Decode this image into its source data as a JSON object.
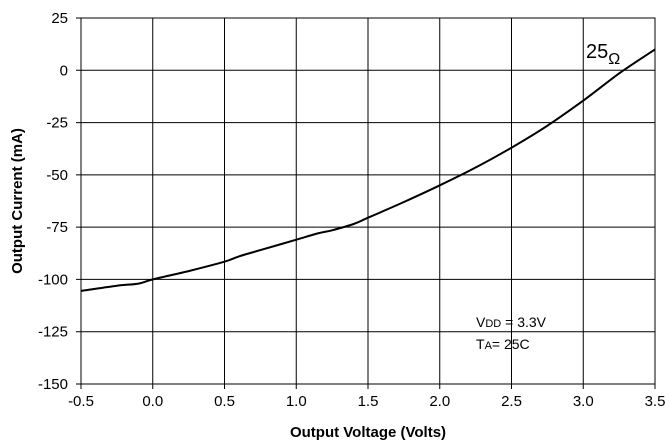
{
  "chart_data": {
    "type": "line",
    "title": "",
    "xlabel": "Output Voltage (Volts)",
    "ylabel": "Output Current (mA)",
    "xlim": [
      -0.5,
      3.5
    ],
    "ylim": [
      -150,
      25
    ],
    "xticks": [
      -0.5,
      0.0,
      0.5,
      1.0,
      1.5,
      2.0,
      2.5,
      3.0,
      3.5
    ],
    "xtick_labels": [
      "-0.5",
      "0.0",
      "0.5",
      "1.0",
      "1.5",
      "2.0",
      "2.5",
      "3.0",
      "3.5"
    ],
    "yticks": [
      25,
      0,
      -25,
      -50,
      -75,
      -100,
      -125,
      -150
    ],
    "ytick_labels": [
      "25",
      "0",
      "-25",
      "-50",
      "-75",
      "-100",
      "-125",
      "-150"
    ],
    "grid": true,
    "series": [
      {
        "name": "25Ω",
        "color": "#000000",
        "x": [
          -0.5,
          -0.25,
          -0.1,
          0.0,
          0.25,
          0.5,
          0.6,
          0.75,
          1.0,
          1.15,
          1.25,
          1.4,
          1.5,
          1.75,
          2.0,
          2.25,
          2.5,
          2.75,
          3.0,
          3.25,
          3.5
        ],
        "y": [
          -105.5,
          -103,
          -102,
          -100,
          -96,
          -91.5,
          -89,
          -86,
          -81,
          -78,
          -76.5,
          -73.5,
          -70.5,
          -63,
          -55,
          -46.5,
          -37,
          -26.5,
          -14.5,
          -1.5,
          10
        ]
      }
    ],
    "curve_label": {
      "base": "25",
      "sub": "Ω"
    },
    "annotations": [
      {
        "prefix": "V",
        "sub": "DD",
        "suffix": " = 3.3V"
      },
      {
        "prefix": "T",
        "sub": "A",
        "suffix": "= 25C"
      }
    ]
  }
}
